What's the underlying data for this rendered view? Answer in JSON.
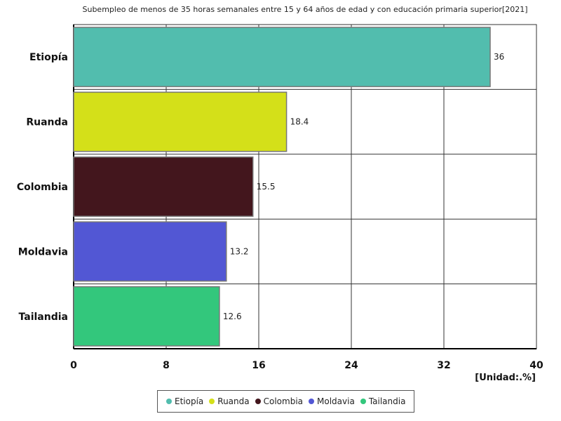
{
  "chart_data": {
    "type": "bar",
    "orientation": "horizontal",
    "title": "Subempleo de menos de 35 horas semanales entre 15 y 64 años de edad y con educación primaria superior[2021]",
    "categories": [
      "Etiopía",
      "Ruanda",
      "Colombia",
      "Moldavia",
      "Tailandia"
    ],
    "values": [
      36,
      18.4,
      15.5,
      13.2,
      12.6
    ],
    "value_labels": [
      "36",
      "18.4",
      "15.5",
      "13.2",
      "12.6"
    ],
    "colors": [
      "#52bdae",
      "#d4e019",
      "#43161d",
      "#5257d4",
      "#33c77c"
    ],
    "xlim": [
      0,
      40
    ],
    "xticks": [
      0,
      8,
      16,
      24,
      32,
      40
    ],
    "xtick_labels": [
      "0",
      "8",
      "16",
      "24",
      "32",
      "40"
    ],
    "unit": "[Unidad:.%]",
    "grid": true,
    "legend_position": "bottom"
  }
}
